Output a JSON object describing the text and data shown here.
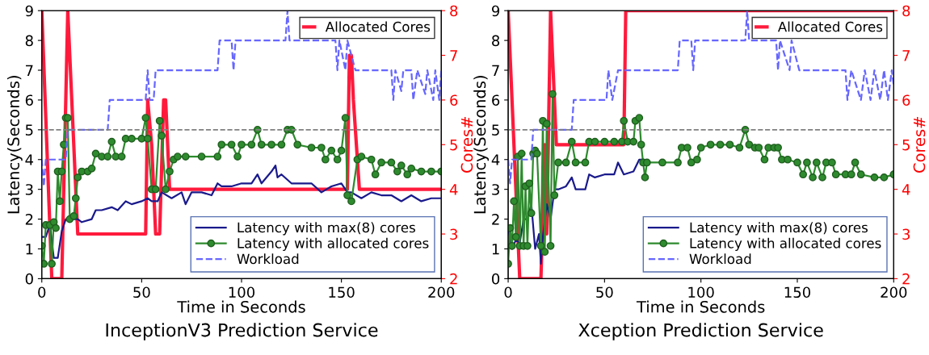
{
  "chart_data": [
    {
      "type": "line",
      "title": "InceptionV3 Prediction Service",
      "xlabel": "Time in Seconds",
      "ylabel": "Latency(Seconds)",
      "y2label": "Cores#",
      "xlim": [
        0,
        200
      ],
      "xticks": [
        0,
        50,
        100,
        150,
        200
      ],
      "ylim": [
        0,
        9
      ],
      "yticks": [
        0,
        1,
        2,
        3,
        4,
        5,
        6,
        7,
        8,
        9
      ],
      "y2lim": [
        2,
        8
      ],
      "y2ticks": [
        2,
        3,
        4,
        5,
        6,
        7,
        8
      ],
      "legend": "right",
      "grid": false,
      "ref_lines": [
        {
          "axis": "y",
          "value": 5,
          "color": "#808080",
          "line_style": "dashed"
        }
      ],
      "series": [
        {
          "name": "Latency with max(8) cores",
          "color": "#1a1a8c",
          "marker": "none",
          "line_style": "solid",
          "x": [
            0,
            2,
            4,
            6,
            8,
            10,
            12,
            15,
            18,
            20,
            25,
            27,
            30,
            35,
            38,
            42,
            45,
            50,
            53,
            55,
            58,
            60,
            65,
            70,
            72,
            75,
            80,
            85,
            88,
            90,
            95,
            100,
            105,
            108,
            110,
            115,
            117,
            118,
            120,
            125,
            130,
            135,
            140,
            145,
            150,
            153,
            155,
            160,
            165,
            170,
            175,
            180,
            185,
            190,
            195,
            200
          ],
          "values": [
            1.4,
            1.4,
            1.8,
            0.7,
            0.7,
            1.6,
            2.0,
            2.0,
            2.0,
            1.9,
            2.0,
            2.3,
            2.3,
            2.4,
            2.3,
            2.6,
            2.5,
            2.6,
            2.7,
            2.6,
            2.6,
            2.9,
            2.7,
            2.9,
            2.5,
            2.9,
            2.9,
            2.8,
            3.2,
            3.1,
            3.1,
            3.2,
            3.2,
            3.5,
            3.2,
            3.6,
            3.8,
            3.4,
            3.5,
            3.2,
            3.2,
            3.2,
            2.9,
            3.1,
            3.2,
            2.9,
            2.9,
            2.7,
            2.9,
            2.8,
            2.8,
            2.6,
            2.8,
            2.6,
            2.7,
            2.7
          ]
        },
        {
          "name": "Latency with allocated cores",
          "color": "#2e8b2e",
          "marker": "circle",
          "line_style": "solid",
          "x": [
            0,
            1,
            2,
            4,
            5,
            6,
            7,
            8,
            9,
            10,
            11,
            12,
            13,
            14,
            16,
            17,
            18,
            20,
            23,
            25,
            27,
            30,
            33,
            35,
            37,
            40,
            42,
            45,
            50,
            52,
            53,
            55,
            57,
            59,
            60,
            62,
            64,
            66,
            68,
            72,
            80,
            88,
            90,
            95,
            98,
            100,
            105,
            108,
            110,
            115,
            120,
            123,
            125,
            128,
            135,
            140,
            142,
            145,
            148,
            150,
            152,
            153,
            155,
            158,
            160,
            165,
            167,
            170,
            175,
            178,
            180,
            183,
            185,
            190,
            195,
            200
          ],
          "values": [
            1.1,
            0.5,
            1.8,
            1.8,
            0.5,
            1.9,
            1.7,
            3.6,
            2.6,
            3.6,
            4.5,
            5.4,
            5.4,
            2.0,
            2.1,
            2.7,
            3.4,
            3.6,
            3.6,
            3.7,
            4.2,
            4.1,
            4.1,
            4.6,
            4.1,
            4.1,
            4.7,
            4.7,
            4.7,
            5.4,
            4.7,
            3.0,
            3.0,
            5.3,
            4.8,
            3.0,
            3.6,
            4.0,
            4.1,
            4.1,
            4.1,
            4.1,
            4.5,
            4.5,
            4.1,
            4.5,
            4.5,
            5.0,
            4.5,
            4.5,
            4.5,
            5.0,
            5.0,
            4.5,
            4.4,
            4.4,
            4.0,
            4.3,
            4.0,
            4.3,
            5.4,
            2.8,
            2.6,
            4.0,
            4.1,
            4.0,
            3.5,
            3.9,
            3.9,
            3.6,
            3.8,
            3.5,
            3.7,
            3.6,
            3.6,
            3.6
          ]
        },
        {
          "name": "Workload",
          "color": "#6666ff",
          "marker": "none",
          "line_style": "dashed",
          "x": [
            0,
            1,
            2,
            12,
            13,
            33,
            34,
            52,
            53,
            54,
            56,
            57,
            88,
            89,
            95,
            96,
            97,
            122,
            123,
            124,
            147,
            148,
            149,
            152,
            153,
            157,
            175,
            176,
            177,
            180,
            181,
            185,
            186,
            188,
            192,
            193,
            196,
            197,
            199,
            200
          ],
          "values": [
            4,
            3.1,
            4,
            4,
            5,
            5,
            6,
            6,
            7,
            6,
            6,
            7,
            7,
            8,
            8,
            7,
            8,
            8,
            9,
            8,
            8,
            7,
            8,
            7,
            8,
            7,
            7,
            6,
            7,
            6.3,
            7,
            7,
            6,
            7,
            6.2,
            7,
            6,
            7,
            6,
            7
          ]
        },
        {
          "name": "Allocated Cores",
          "color": "#ff1a3c",
          "axis": "y2",
          "marker": "none",
          "line_style": "solid",
          "x": [
            0,
            5,
            10,
            13,
            18,
            52,
            53,
            55,
            57,
            59,
            61,
            62,
            64,
            153,
            154,
            155,
            156,
            159,
            200
          ],
          "values": [
            8,
            2,
            2,
            8,
            3,
            3,
            6,
            5,
            3,
            3,
            6,
            6,
            4,
            4,
            7,
            7,
            6,
            4,
            4
          ]
        }
      ]
    },
    {
      "type": "line",
      "title": "Xception Prediction Service",
      "xlabel": "Time in Seconds",
      "ylabel": "Latency(Seconds)",
      "y2label": "Cores#",
      "xlim": [
        0,
        200
      ],
      "xticks": [
        0,
        50,
        100,
        150,
        200
      ],
      "ylim": [
        0,
        9
      ],
      "yticks": [
        0,
        1,
        2,
        3,
        4,
        5,
        6,
        7,
        8,
        9
      ],
      "y2lim": [
        2,
        8
      ],
      "y2ticks": [
        2,
        3,
        4,
        5,
        6,
        7,
        8
      ],
      "legend": "right",
      "grid": false,
      "ref_lines": [
        {
          "axis": "y",
          "value": 5,
          "color": "#808080",
          "line_style": "dashed"
        }
      ],
      "series": [
        {
          "name": "Latency with max(8) cores",
          "color": "#1a1a8c",
          "marker": "none",
          "line_style": "solid",
          "x": [
            0,
            2,
            4,
            6,
            8,
            10,
            12,
            14,
            16,
            17,
            18,
            20,
            22,
            24,
            26,
            30,
            33,
            35,
            40,
            42,
            45,
            50,
            55,
            57,
            60,
            65,
            68,
            70
          ],
          "values": [
            1.7,
            1.0,
            1.3,
            1.2,
            2.0,
            2.0,
            2.5,
            1.0,
            1.5,
            0.5,
            1.4,
            2.5,
            2.0,
            3.0,
            3.0,
            3.1,
            3.4,
            3.0,
            3.0,
            3.5,
            3.4,
            3.5,
            3.5,
            3.9,
            3.5,
            3.6,
            4.0,
            4.0
          ]
        },
        {
          "name": "Latency with allocated cores",
          "color": "#2e8b2e",
          "marker": "circle",
          "line_style": "solid",
          "x": [
            0,
            1,
            2,
            3,
            4,
            5,
            6,
            7,
            8,
            9,
            10,
            11,
            12,
            13,
            14,
            15,
            17,
            18,
            19,
            20,
            22,
            23,
            24,
            26,
            30,
            33,
            35,
            40,
            42,
            45,
            50,
            55,
            59,
            60,
            62,
            65,
            66,
            68,
            69,
            70,
            71,
            72,
            80,
            88,
            90,
            93,
            95,
            98,
            100,
            105,
            110,
            115,
            120,
            123,
            125,
            128,
            130,
            133,
            135,
            138,
            140,
            142,
            145,
            150,
            153,
            155,
            158,
            160,
            163,
            165,
            168,
            170,
            175,
            178,
            180,
            183,
            190,
            195,
            200
          ],
          "values": [
            0.5,
            1.7,
            1.1,
            2.6,
            1.4,
            4.1,
            1.1,
            4.2,
            1.1,
            3.1,
            1.1,
            3.2,
            2.2,
            4.2,
            4.3,
            4.2,
            1.1,
            5.3,
            0.9,
            5.2,
            1.1,
            6.2,
            2.8,
            3.9,
            3.9,
            4.6,
            3.9,
            3.9,
            4.6,
            4.6,
            4.6,
            4.6,
            4.6,
            5.3,
            4.6,
            4.6,
            5.3,
            5.4,
            4.5,
            3.9,
            3.4,
            3.9,
            3.9,
            3.9,
            4.4,
            4.4,
            3.9,
            4.0,
            4.4,
            4.5,
            4.5,
            4.5,
            4.4,
            5.0,
            4.5,
            4.4,
            4.4,
            4.0,
            4.4,
            4.4,
            4.4,
            4.0,
            4.0,
            3.9,
            3.5,
            3.9,
            3.4,
            3.9,
            3.4,
            3.9,
            3.9,
            3.5,
            3.5,
            3.5,
            3.9,
            3.5,
            3.4,
            3.4,
            3.5
          ]
        },
        {
          "name": "Workload",
          "color": "#6666ff",
          "marker": "none",
          "line_style": "dashed",
          "x": [
            0,
            1,
            2,
            12,
            13,
            33,
            34,
            51,
            52,
            54,
            57,
            88,
            89,
            95,
            96,
            97,
            123,
            124,
            125,
            139,
            140,
            141,
            146,
            147,
            151,
            175,
            176,
            178,
            183,
            185,
            188,
            190,
            193,
            195,
            197,
            199,
            200
          ],
          "values": [
            4,
            3.2,
            4,
            4,
            5,
            5,
            6,
            6,
            7,
            6,
            7,
            7,
            8,
            8,
            7,
            8,
            8,
            9,
            8,
            8,
            7,
            8,
            7,
            8,
            7,
            7,
            6,
            7,
            6,
            7,
            6,
            7,
            6,
            7,
            6,
            7,
            6.5
          ]
        },
        {
          "name": "Allocated Cores",
          "color": "#ff1a3c",
          "axis": "y2",
          "marker": "none",
          "line_style": "solid",
          "x": [
            0,
            5,
            6,
            17,
            19,
            20,
            22,
            25,
            60,
            61,
            200
          ],
          "values": [
            8,
            3,
            2,
            2,
            5,
            3,
            8,
            5,
            5,
            8,
            8
          ]
        }
      ]
    }
  ]
}
